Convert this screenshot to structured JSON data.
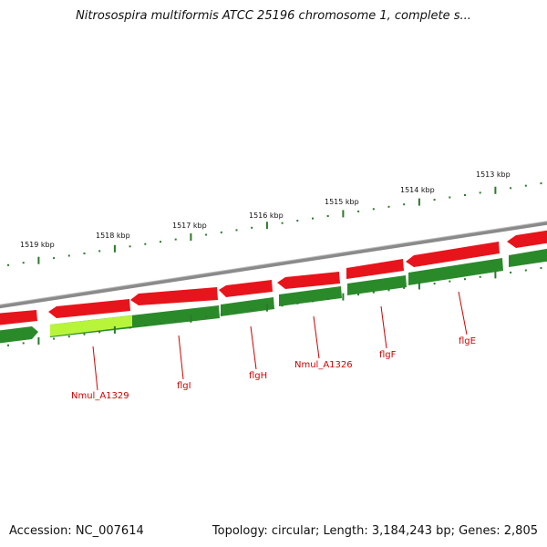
{
  "title": "Nitrosospira multiformis ATCC 25196 chromosome 1, complete s...",
  "footer": {
    "accession": "Accession: NC_007614",
    "summary": "Topology: circular; Length: 3,184,243 bp; Genes: 2,805"
  },
  "colors": {
    "backbone": "#8a8a8a",
    "forward_gene": "#e8141b",
    "reverse_gene": "#2a8a2a",
    "highlight_gene": "#b8f43a",
    "label": "#d40000",
    "ticks_outer": "#2a7a2a"
  },
  "chart_data": {
    "type": "genome-map",
    "kbp_ticks": [
      {
        "label": "1519 kbp",
        "kbp": 1519
      },
      {
        "label": "1518 kbp",
        "kbp": 1518
      },
      {
        "label": "1517 kbp",
        "kbp": 1517
      },
      {
        "label": "1516 kbp",
        "kbp": 1516
      },
      {
        "label": "1515 kbp",
        "kbp": 1515
      },
      {
        "label": "1514 kbp",
        "kbp": 1514
      },
      {
        "label": "1513 kbp",
        "kbp": 1513
      }
    ],
    "gene_labels": [
      "Nmul_A1329",
      "flgI",
      "flgH",
      "Nmul_A1326",
      "flgF",
      "flgE"
    ]
  }
}
